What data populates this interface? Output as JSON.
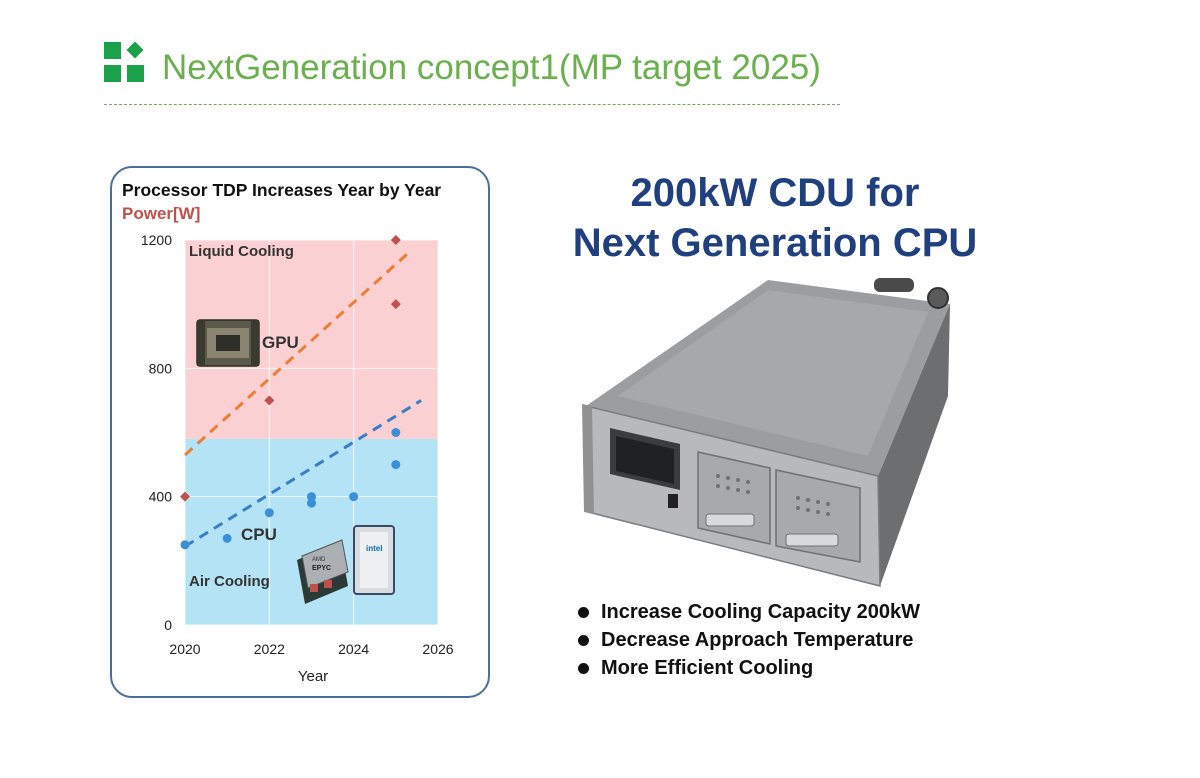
{
  "header": {
    "title": "NextGeneration concept1(MP target 2025)",
    "logo_icon": "green-squares-logo-icon",
    "accent_color": "#6ab04c"
  },
  "chart_panel": {
    "title": "Processor TDP Increases Year by Year",
    "ylabel": "Power[W]",
    "xlabel": "Year",
    "zone_labels": {
      "upper": "Liquid Cooling",
      "lower": "Air Cooling"
    },
    "item_labels": {
      "gpu": "GPU",
      "cpu": "CPU"
    },
    "chip_labels": {
      "amd_brand": "AMD",
      "amd_model": "EPYC",
      "intel_brand": "intel"
    }
  },
  "chart_data": {
    "type": "scatter",
    "title": "Processor TDP Increases Year by Year",
    "xlabel": "Year",
    "ylabel": "Power[W]",
    "xlim": [
      2020,
      2026
    ],
    "ylim": [
      0,
      1200
    ],
    "x_ticks": [
      2020,
      2022,
      2024,
      2026
    ],
    "y_ticks": [
      0,
      400,
      800,
      1200
    ],
    "grid": true,
    "zones": [
      {
        "name": "Liquid Cooling",
        "from": 580,
        "to": 1200,
        "color": "#fbd0d3"
      },
      {
        "name": "Air Cooling",
        "from": 0,
        "to": 580,
        "color": "#b3e3f5"
      }
    ],
    "series": [
      {
        "name": "GPU",
        "color": "#c0504d",
        "marker": "diamond",
        "points": [
          [
            2020,
            400
          ],
          [
            2022,
            700
          ],
          [
            2025,
            1000
          ],
          [
            2025,
            1200
          ]
        ],
        "trend": [
          [
            2020,
            530
          ],
          [
            2025.3,
            1160
          ]
        ],
        "trend_color": "#ed7d31"
      },
      {
        "name": "CPU",
        "color": "#3a8fd6",
        "marker": "circle",
        "points": [
          [
            2020,
            250
          ],
          [
            2021,
            270
          ],
          [
            2022,
            350
          ],
          [
            2023,
            380
          ],
          [
            2023,
            400
          ],
          [
            2024,
            400
          ],
          [
            2025,
            500
          ],
          [
            2025,
            600
          ]
        ],
        "trend": [
          [
            2020,
            245
          ],
          [
            2025.6,
            700
          ]
        ],
        "trend_color": "#3a7dc4"
      }
    ]
  },
  "cdu": {
    "title_line1": "200kW CDU for",
    "title_line2": "Next Generation CPU",
    "title_color": "#1f3f7f",
    "features": [
      "Increase Cooling Capacity 200kW",
      "Decrease Approach Temperature",
      "More Efficient Cooling"
    ]
  }
}
